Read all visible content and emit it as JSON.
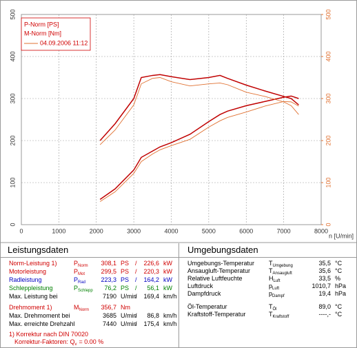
{
  "chart_data": {
    "type": "line",
    "legend": [
      "P-Norm [PS]",
      "M-Norm [Nm]"
    ],
    "legend_date": "04.09.2006 11:12",
    "x_label": "n [U/min]",
    "x": [
      2100,
      2500,
      3000,
      3200,
      3500,
      3700,
      4000,
      4500,
      5000,
      5300,
      5500,
      6000,
      6500,
      7000,
      7200,
      7400
    ],
    "series": [
      {
        "color": "#c00000",
        "values": [
          60,
          85,
          130,
          160,
          175,
          185,
          195,
          215,
          245,
          262,
          270,
          283,
          293,
          303,
          306,
          300
        ]
      },
      {
        "color": "#e07030",
        "values": [
          55,
          78,
          122,
          150,
          168,
          178,
          188,
          203,
          232,
          247,
          255,
          268,
          282,
          293,
          292,
          282
        ]
      },
      {
        "color": "#c00000",
        "axis": "y2",
        "values": [
          200,
          240,
          300,
          350,
          355,
          357,
          352,
          345,
          350,
          355,
          348,
          332,
          318,
          305,
          300,
          285
        ]
      },
      {
        "color": "#e07030",
        "axis": "y2",
        "values": [
          190,
          225,
          285,
          335,
          348,
          350,
          340,
          330,
          335,
          337,
          333,
          315,
          305,
          292,
          283,
          262
        ]
      }
    ],
    "xlim": [
      0,
      8000
    ],
    "xticks": [
      0,
      1000,
      2000,
      3000,
      4000,
      5000,
      6000,
      7000,
      8000
    ],
    "ylim": [
      0,
      500
    ],
    "yticks": [
      0,
      100,
      200,
      300,
      400,
      500
    ],
    "y2lim": [
      0,
      500
    ],
    "y2ticks": [
      0,
      100,
      200,
      300,
      400,
      500
    ],
    "y2color": "#e07030",
    "grid": true
  },
  "leistung": {
    "title": "Leistungsdaten",
    "rows": [
      {
        "label": "Norm-Leistung 1)",
        "symbol": "P",
        "sub": "Norm",
        "value": "308,1",
        "unit": "PS",
        "sep": "/",
        "value2": "226,6",
        "unit2": "kW",
        "color": "#d00000"
      },
      {
        "label": "Motorleistung",
        "symbol": "P",
        "sub": "Mot",
        "value": "299,5",
        "unit": "PS",
        "sep": "/",
        "value2": "220,3",
        "unit2": "kW",
        "color": "#d00000"
      },
      {
        "label": "Radleistung",
        "symbol": "P",
        "sub": "Rad",
        "value": "223,3",
        "unit": "PS",
        "sep": "/",
        "value2": "164,2",
        "unit2": "kW",
        "color": "#0000c0"
      },
      {
        "label": "Schleppleistung",
        "symbol": "P",
        "sub": "Schlepp",
        "value": "76,2",
        "unit": "PS",
        "sep": "/",
        "value2": "56,1",
        "unit2": "kW",
        "color": "#008000"
      },
      {
        "label": "Max. Leistung bei",
        "value": "7190",
        "unit": "U/min",
        "sep": "/",
        "value2": "169,4",
        "unit2": "km/h",
        "color": "#000000"
      },
      {
        "label": "Drehmoment 1)",
        "symbol": "M",
        "sub": "Norm",
        "value": "356,7",
        "unit": "Nm",
        "color": "#d00000",
        "gap": true
      },
      {
        "label": "Max. Drehmoment bei",
        "value": "3685",
        "unit": "U/min",
        "sep": "/",
        "value2": "86,8",
        "unit2": "km/h",
        "color": "#000000"
      },
      {
        "label": "Max. erreichte Drehzahl",
        "value": "7440",
        "unit": "U/min",
        "sep": "/",
        "value2": "175,4",
        "unit2": "km/h",
        "color": "#000000"
      }
    ],
    "footnote": "1) Korrektur nach DIN 70020",
    "factor_label": "Korrektur-Faktoren: Q",
    "factor_sub": "v",
    "factor_value": "= 0.00 %"
  },
  "umgebung": {
    "title": "Umgebungsdaten",
    "rows": [
      {
        "label": "Umgebungs-Temperatur",
        "symbol": "T",
        "sub": "Umgebung",
        "value": "35,5",
        "unit": "°C"
      },
      {
        "label": "Ansaugluft-Temperatur",
        "symbol": "T",
        "sub": "Ansaugluft",
        "value": "35,6",
        "unit": "°C"
      },
      {
        "label": "Relative Luftfeuchte",
        "symbol": "H",
        "sub": "Luft",
        "value": "33,5",
        "unit": "%"
      },
      {
        "label": "Luftdruck",
        "symbol": "p",
        "sub": "Luft",
        "value": "1010,7",
        "unit": "hPa"
      },
      {
        "label": "Dampfdruck",
        "symbol": "p",
        "sub": "Dampf",
        "value": "19,4",
        "unit": "hPa"
      },
      {
        "label": "Öl-Temperatur",
        "symbol": "T",
        "sub": "Öl",
        "value": "89,0",
        "unit": "°C",
        "gap": true
      },
      {
        "label": "Kraftstoff-Temperatur",
        "symbol": "T",
        "sub": "Kraftstoff",
        "value": "----,-",
        "unit": "°C"
      }
    ]
  }
}
